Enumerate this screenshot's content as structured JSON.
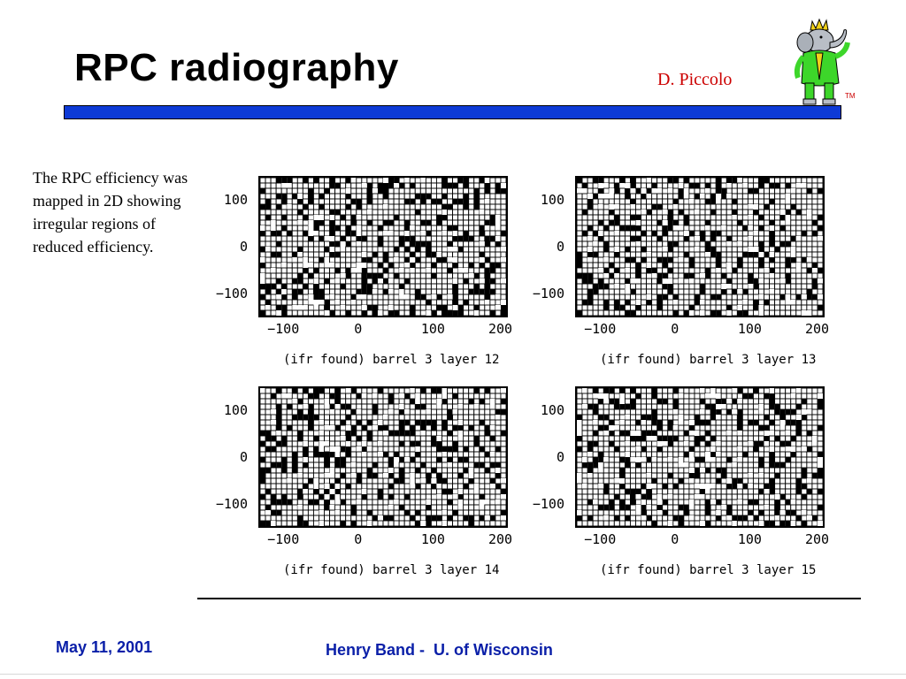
{
  "slide": {
    "title": "RPC radiography",
    "author": "D. Piccolo",
    "tm": "TM",
    "body_text": "The RPC efficiency was mapped in 2D showing irregular regions of reduced efficiency.",
    "footer_date": "May 11, 2001",
    "footer_center": "Henry Band -  U. of Wisconsin"
  },
  "colors": {
    "title": "#000000",
    "author": "#cc0000",
    "rule": "#0d3ad6",
    "footer": "#0a1fa8"
  },
  "chart_data": [
    {
      "type": "heatmap",
      "title": "(ifr found) barrel 3 layer 12",
      "yticks": [
        "100",
        "0",
        "−100"
      ],
      "xticks": [
        "−100",
        "0",
        "100",
        "200"
      ]
    },
    {
      "type": "heatmap",
      "title": "(ifr found) barrel 3 layer 13",
      "yticks": [
        "100",
        "0",
        "−100"
      ],
      "xticks": [
        "−100",
        "0",
        "100",
        "200"
      ]
    },
    {
      "type": "heatmap",
      "title": "(ifr found) barrel 3 layer 14",
      "yticks": [
        "100",
        "0",
        "−100"
      ],
      "xticks": [
        "−100",
        "0",
        "100",
        "200"
      ]
    },
    {
      "type": "heatmap",
      "title": "(ifr found) barrel 3 layer 15",
      "yticks": [
        "100",
        "0",
        "−100"
      ],
      "xticks": [
        "−100",
        "0",
        "100",
        "200"
      ]
    }
  ]
}
